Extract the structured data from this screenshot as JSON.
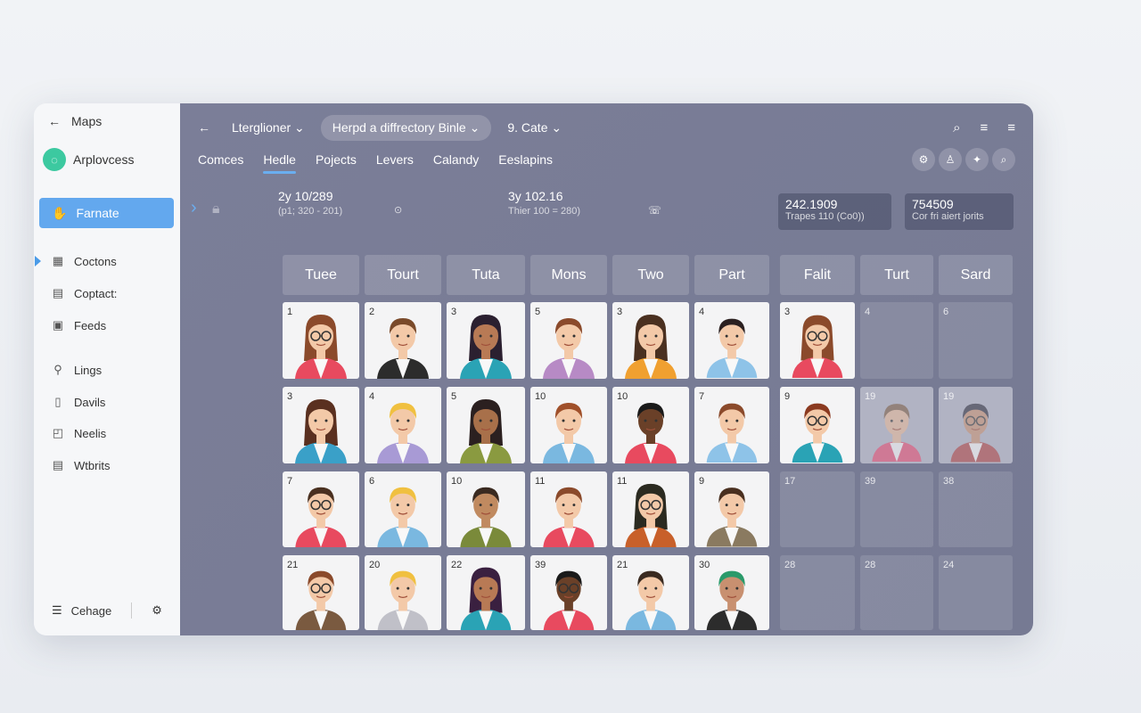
{
  "sidebar": {
    "back_label": "Maps",
    "app_name": "Arplovcess",
    "active_item": "Farnate",
    "items": [
      {
        "label": "Coctons",
        "icon": "grid-icon",
        "selected": true
      },
      {
        "label": "Coptact:",
        "icon": "contact-card-icon"
      },
      {
        "label": "Feeds",
        "icon": "feed-icon"
      },
      {
        "label": "Lings",
        "icon": "link-icon"
      },
      {
        "label": "Davils",
        "icon": "document-icon"
      },
      {
        "label": "Neelis",
        "icon": "chart-icon"
      },
      {
        "label": "Wtbrits",
        "icon": "list-icon"
      }
    ],
    "footer_label": "Cehage"
  },
  "topbar": {
    "location": "Lterglioner",
    "search_pill": "Herpd a diffrectory Binle",
    "filter": "9. Cate"
  },
  "tabs": [
    {
      "label": "Comces"
    },
    {
      "label": "Hedle",
      "active": true
    },
    {
      "label": "Pojects"
    },
    {
      "label": "Levers"
    },
    {
      "label": "Calandy"
    },
    {
      "label": "Eeslapins"
    }
  ],
  "stats": [
    {
      "value": "2y 10/289",
      "sub": "(p1; 320 - 201)"
    },
    {
      "value": "3y 102.16",
      "sub": "Thier 100 = 280)"
    }
  ],
  "cards": [
    {
      "value": "242.1909",
      "sub": "Trapes 110 (Co0))"
    },
    {
      "value": "754509",
      "sub": "Cor fri aiert jorits"
    }
  ],
  "accent": "#63a8ee",
  "grid": {
    "headers": [
      "Tuee",
      "Tourt",
      "Tuta",
      "Mons",
      "Two",
      "Part",
      "Falit",
      "Turt",
      "Sard"
    ],
    "rows": [
      [
        {
          "num": "1",
          "state": "full",
          "hair": "#8b4a2b",
          "shirt": "#e84a5f",
          "skin": "#f3c9a8",
          "glasses": true,
          "long": true
        },
        {
          "num": "2",
          "state": "full",
          "hair": "#7a4a2a",
          "shirt": "#2c2c2c",
          "skin": "#f3c9a8"
        },
        {
          "num": "3",
          "state": "full",
          "hair": "#2b2030",
          "shirt": "#2aa3b5",
          "skin": "#b87a55",
          "long": true
        },
        {
          "num": "5",
          "state": "full",
          "hair": "#8b4a2b",
          "shirt": "#b78ac5",
          "skin": "#f3c9a8"
        },
        {
          "num": "3",
          "state": "full",
          "hair": "#4a3020",
          "shirt": "#f0a030",
          "skin": "#f3c9a8",
          "long": true
        },
        {
          "num": "4",
          "state": "full",
          "hair": "#2b2020",
          "shirt": "#8ec3e8",
          "skin": "#f3c9a8"
        },
        {
          "num": "3",
          "state": "full",
          "hair": "#8b4a2b",
          "shirt": "#e84a5f",
          "skin": "#f3c9a8",
          "glasses": true,
          "long": true
        },
        {
          "num": "4",
          "state": "empty"
        },
        {
          "num": "6",
          "state": "empty"
        }
      ],
      [
        {
          "num": "3",
          "state": "full",
          "hair": "#5a3020",
          "shirt": "#3aa0c8",
          "skin": "#f3c9a8",
          "long": true
        },
        {
          "num": "4",
          "state": "full",
          "hair": "#f0c040",
          "shirt": "#a89ad5",
          "skin": "#f3c9a8"
        },
        {
          "num": "5",
          "state": "full",
          "hair": "#2b2020",
          "shirt": "#8a9a40",
          "skin": "#a8704a",
          "long": true
        },
        {
          "num": "10",
          "state": "full",
          "hair": "#a0502a",
          "shirt": "#7ab8e0",
          "skin": "#f3c9a8"
        },
        {
          "num": "10",
          "state": "full",
          "hair": "#1a1a1a",
          "shirt": "#e84a5f",
          "skin": "#6a4028"
        },
        {
          "num": "7",
          "state": "full",
          "hair": "#8b4a2b",
          "shirt": "#8ec3e8",
          "skin": "#f3c9a8"
        },
        {
          "num": "9",
          "state": "full",
          "hair": "#8b3a20",
          "shirt": "#2aa3b5",
          "skin": "#f3c9a8",
          "glasses": true
        },
        {
          "num": "19",
          "state": "faded",
          "hair": "#7a5a40",
          "shirt": "#e84a6f",
          "skin": "#e8b898"
        },
        {
          "num": "19",
          "state": "faded",
          "hair": "#2b2a3a",
          "shirt": "#b04040",
          "skin": "#c89070",
          "glasses": true
        }
      ],
      [
        {
          "num": "7",
          "state": "full",
          "hair": "#4a3020",
          "shirt": "#e84a5f",
          "skin": "#f3c9a8",
          "glasses": true
        },
        {
          "num": "6",
          "state": "full",
          "hair": "#f0c040",
          "shirt": "#7ab8e0",
          "skin": "#f3c9a8"
        },
        {
          "num": "10",
          "state": "full",
          "hair": "#3a2a20",
          "shirt": "#7a8a3a",
          "skin": "#c08a60"
        },
        {
          "num": "11",
          "state": "full",
          "hair": "#8b4a2b",
          "shirt": "#e84a5f",
          "skin": "#f3c9a8"
        },
        {
          "num": "11",
          "state": "full",
          "hair": "#2b2a20",
          "shirt": "#c8602a",
          "skin": "#f3c9a8",
          "glasses": true,
          "long": true
        },
        {
          "num": "9",
          "state": "full",
          "hair": "#4a3020",
          "shirt": "#8a7a60",
          "skin": "#f3c9a8"
        },
        {
          "num": "17",
          "state": "empty"
        },
        {
          "num": "39",
          "state": "empty"
        },
        {
          "num": "38",
          "state": "empty"
        }
      ],
      [
        {
          "num": "21",
          "state": "full",
          "hair": "#8b4a2b",
          "shirt": "#7a5a40",
          "skin": "#f3c9a8",
          "glasses": true
        },
        {
          "num": "20",
          "state": "full",
          "hair": "#f0c040",
          "shirt": "#c0c0c8",
          "skin": "#f3c9a8"
        },
        {
          "num": "22",
          "state": "full",
          "hair": "#3a2040",
          "shirt": "#2aa3b5",
          "skin": "#b87a55",
          "long": true
        },
        {
          "num": "39",
          "state": "full",
          "hair": "#1a1a1a",
          "shirt": "#e84a5f",
          "skin": "#6a4028",
          "glasses": true
        },
        {
          "num": "21",
          "state": "full",
          "hair": "#3a2a20",
          "shirt": "#7ab8e0",
          "skin": "#f3c9a8"
        },
        {
          "num": "30",
          "state": "full",
          "hair": "#2a9a6a",
          "shirt": "#2c2c2c",
          "skin": "#c89070"
        },
        {
          "num": "28",
          "state": "empty"
        },
        {
          "num": "28",
          "state": "empty"
        },
        {
          "num": "24",
          "state": "empty"
        }
      ]
    ]
  }
}
